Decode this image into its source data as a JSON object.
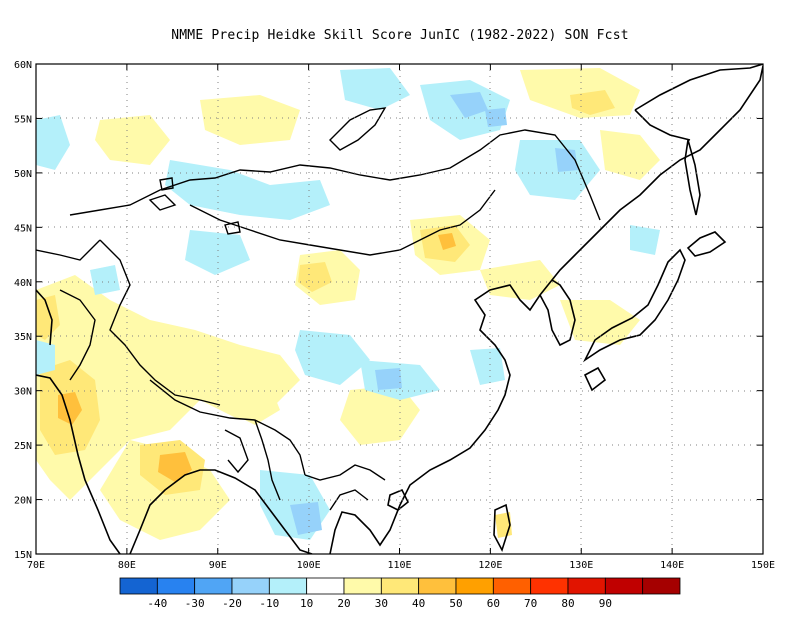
{
  "title": "NMME Precip Heidke Skill Score JunIC (1982-2022) SON Fcst",
  "map": {
    "lon_range": [
      70,
      150
    ],
    "lat_range": [
      15,
      60
    ],
    "lon_ticks": [
      "70E",
      "80E",
      "90E",
      "100E",
      "110E",
      "120E",
      "130E",
      "140E",
      "150E"
    ],
    "lat_ticks": [
      "15N",
      "20N",
      "25N",
      "30N",
      "35N",
      "40N",
      "45N",
      "50N",
      "55N",
      "60N"
    ],
    "grid": "dotted"
  },
  "colorbar": {
    "labels": [
      "-40",
      "-30",
      "-20",
      "-10",
      "10",
      "20",
      "30",
      "40",
      "50",
      "60",
      "70",
      "80",
      "90"
    ],
    "colors": [
      "#1464d2",
      "#2882f0",
      "#50a5f5",
      "#96d2fa",
      "#b4f0fa",
      "#ffffff",
      "#fffaaa",
      "#ffe878",
      "#ffc03c",
      "#ffa000",
      "#ff6000",
      "#ff3200",
      "#e11400",
      "#c00000",
      "#a50000"
    ]
  }
}
